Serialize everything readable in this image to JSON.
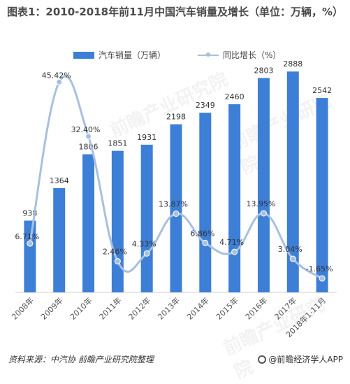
{
  "title": "图表1：2010-2018年前11月中国汽车销量及增长（单位：万辆，%）",
  "legend": {
    "bar_label": "汽车销量（万辆）",
    "line_label": "同比增长（%）"
  },
  "footer": {
    "source": "资料来源：中汽协  前瞻产业研究院整理",
    "brand": "@前瞻经济学人APP"
  },
  "watermarks": [
    "前瞻产业研究院",
    "前瞻产业研究院",
    "前瞻产业研究院"
  ],
  "colors": {
    "bar": "#3d7fd6",
    "line": "#a8c0e0",
    "text": "#333333"
  },
  "chart_data": {
    "type": "bar",
    "categories": [
      "2008年",
      "2009年",
      "2010年",
      "2011年",
      "2012年",
      "2013年",
      "2014年",
      "2015年",
      "2016年",
      "2017年",
      "2018年1-11月"
    ],
    "series": [
      {
        "name": "汽车销量（万辆）",
        "type": "bar",
        "values": [
          938,
          1364,
          1806,
          1851,
          1931,
          2198,
          2349,
          2460,
          2803,
          2888,
          2542
        ],
        "labels": [
          "938",
          "1364",
          "1806",
          "1851",
          "1931",
          "2198",
          "2349",
          "2460",
          "2803",
          "2888",
          "2542"
        ]
      },
      {
        "name": "同比增长（%）",
        "type": "line",
        "values": [
          6.71,
          45.42,
          32.4,
          2.46,
          4.33,
          13.87,
          6.86,
          4.71,
          13.95,
          3.04,
          -1.65
        ],
        "labels": [
          "6.71%",
          "45.42%",
          "32.40%",
          "2.46%",
          "4.33%",
          "13.87%",
          "6.86%",
          "4.71%",
          "13.95%",
          "3.04%",
          "-1.65%"
        ]
      }
    ],
    "bar_ylim": [
      0,
      3000
    ],
    "line_ylim": [
      -5,
      50
    ],
    "legend_position": "top-center",
    "grid": false
  }
}
